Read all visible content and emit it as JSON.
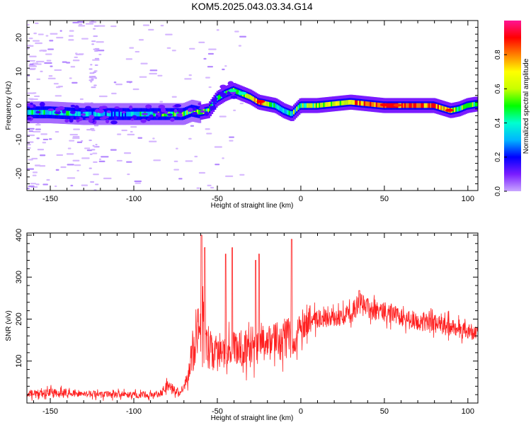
{
  "title": "KOM5.2025.043.03.34.G14",
  "chart_data": [
    {
      "type": "heatmap",
      "xlabel": "Height of straight line (km)",
      "ylabel": "Frequency (Hz)",
      "xlim": [
        -164,
        106
      ],
      "ylim": [
        -25,
        25
      ],
      "x_ticks": [
        -150,
        -100,
        -50,
        0,
        50,
        100
      ],
      "y_ticks": [
        -20,
        -10,
        0,
        10,
        20
      ],
      "colorbar": {
        "label": "Normalized spectral amplitude",
        "range": [
          0,
          1
        ],
        "ticks": [
          "0.0",
          "0.2",
          "0.4",
          "0.6",
          "0.8"
        ],
        "colors": [
          "#ffffff",
          "#c9a7ff",
          "#7a1cff",
          "#0000ff",
          "#00b5ff",
          "#00ffd0",
          "#00ff00",
          "#c8ff00",
          "#ffff00",
          "#ff8000",
          "#ff0000",
          "#ff1493"
        ]
      },
      "ridge": {
        "x": [
          -164,
          -150,
          -130,
          -110,
          -95,
          -80,
          -70,
          -65,
          -60,
          -55,
          -50,
          -45,
          -40,
          -35,
          -30,
          -25,
          -20,
          -15,
          -10,
          -5,
          0,
          10,
          20,
          30,
          40,
          50,
          60,
          70,
          80,
          90,
          95,
          100,
          106
        ],
        "freq_hz": [
          -2,
          -2,
          -2.5,
          -2.5,
          -2.5,
          -2.5,
          -2.5,
          -1.5,
          -2,
          -1.5,
          2,
          3.5,
          4.5,
          3.5,
          2.5,
          1,
          0.5,
          0,
          -1.5,
          -2.5,
          0,
          0,
          0.5,
          1,
          0.5,
          0,
          0,
          0,
          0,
          -1.5,
          -1,
          0,
          0.5
        ],
        "amplitude": [
          0.4,
          0.45,
          0.4,
          0.35,
          0.45,
          0.5,
          0.55,
          0.6,
          0.65,
          0.55,
          0.45,
          0.6,
          0.65,
          0.55,
          0.55,
          0.9,
          0.6,
          0.5,
          0.4,
          0.5,
          0.55,
          0.6,
          0.65,
          0.75,
          0.85,
          0.95,
          0.9,
          0.85,
          0.85,
          0.75,
          0.5,
          0.6,
          0.55
        ]
      }
    },
    {
      "type": "line",
      "xlabel": "Height of straight line (km)",
      "ylabel": "SNR (v/v)",
      "xlim": [
        -164,
        106
      ],
      "ylim": [
        0,
        405
      ],
      "x_ticks": [
        -150,
        -100,
        -50,
        0,
        50,
        100
      ],
      "y_ticks": [
        100,
        200,
        300,
        400
      ],
      "color": "#ff2020",
      "envelope": {
        "x": [
          -164,
          -150,
          -140,
          -120,
          -100,
          -85,
          -80,
          -72,
          -68,
          -65,
          -62,
          -59,
          -57,
          -55,
          -50,
          -45,
          -40,
          -35,
          -33,
          -30,
          -27,
          -25,
          -20,
          -15,
          -12,
          -8,
          -6,
          -4,
          0,
          10,
          20,
          30,
          35,
          40,
          50,
          60,
          70,
          80,
          90,
          100,
          106
        ],
        "mean": [
          20,
          25,
          25,
          20,
          20,
          20,
          40,
          25,
          55,
          120,
          170,
          200,
          160,
          130,
          110,
          120,
          130,
          130,
          130,
          120,
          120,
          150,
          140,
          150,
          150,
          160,
          150,
          150,
          180,
          200,
          205,
          210,
          240,
          225,
          215,
          205,
          195,
          190,
          180,
          170,
          165
        ],
        "spread": [
          15,
          20,
          15,
          15,
          15,
          15,
          25,
          15,
          30,
          80,
          130,
          150,
          100,
          90,
          70,
          70,
          80,
          80,
          80,
          70,
          70,
          90,
          80,
          80,
          90,
          90,
          80,
          70,
          60,
          40,
          40,
          45,
          50,
          45,
          40,
          40,
          40,
          40,
          40,
          35,
          30
        ]
      },
      "peaks": [
        {
          "x": -59.5,
          "y": 400
        },
        {
          "x": -57.5,
          "y": 370
        },
        {
          "x": -45,
          "y": 355
        },
        {
          "x": -41,
          "y": 370
        },
        {
          "x": -27,
          "y": 340
        },
        {
          "x": -25,
          "y": 355
        },
        {
          "x": -5.5,
          "y": 390
        },
        {
          "x": 35,
          "y": 268
        }
      ]
    }
  ]
}
